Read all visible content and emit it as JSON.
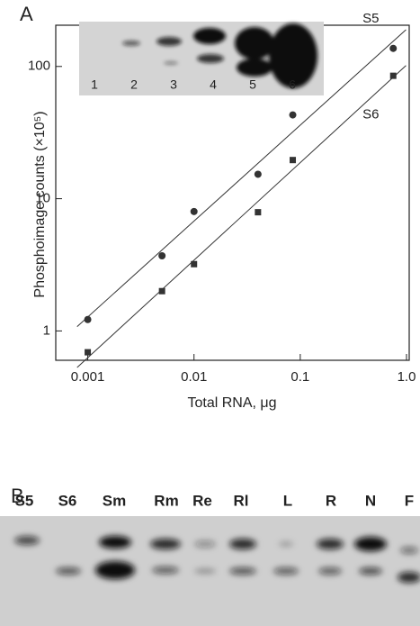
{
  "chart_data": {
    "type": "scatter",
    "panel": "A",
    "xlabel": "Total RNA, μg",
    "ylabel": "Phosphoimage counts (×10⁵)",
    "xscale": "log",
    "yscale": "log",
    "xlim": [
      0.0005,
      1.06
    ],
    "ylim": [
      0.6,
      205
    ],
    "xticks": [
      0.001,
      0.01,
      0.1,
      {
        "value": 1,
        "label": "1.0"
      }
    ],
    "yticks": [
      1,
      10,
      100
    ],
    "fit_lines": true,
    "series": [
      {
        "name": "S5",
        "color": "#333333",
        "marker": "circle",
        "x": [
          0.001,
          0.005,
          0.01,
          0.04,
          0.085,
          0.75
        ],
        "values": [
          1.22,
          3.7,
          8.0,
          15.3,
          43,
          137
        ]
      },
      {
        "name": "S6",
        "color": "#333333",
        "marker": "square",
        "x": [
          0.001,
          0.005,
          0.01,
          0.04,
          0.085,
          0.75
        ],
        "values": [
          0.69,
          2.0,
          3.2,
          7.9,
          19.6,
          85
        ]
      }
    ],
    "inset_lanes": [
      "1",
      "2",
      "3",
      "4",
      "5",
      "6"
    ]
  },
  "panel_b": {
    "label": "B",
    "lanes": [
      "S5",
      "S6",
      "Sm",
      "Rm",
      "Re",
      "Rl",
      "L",
      "R",
      "N",
      "F"
    ]
  }
}
